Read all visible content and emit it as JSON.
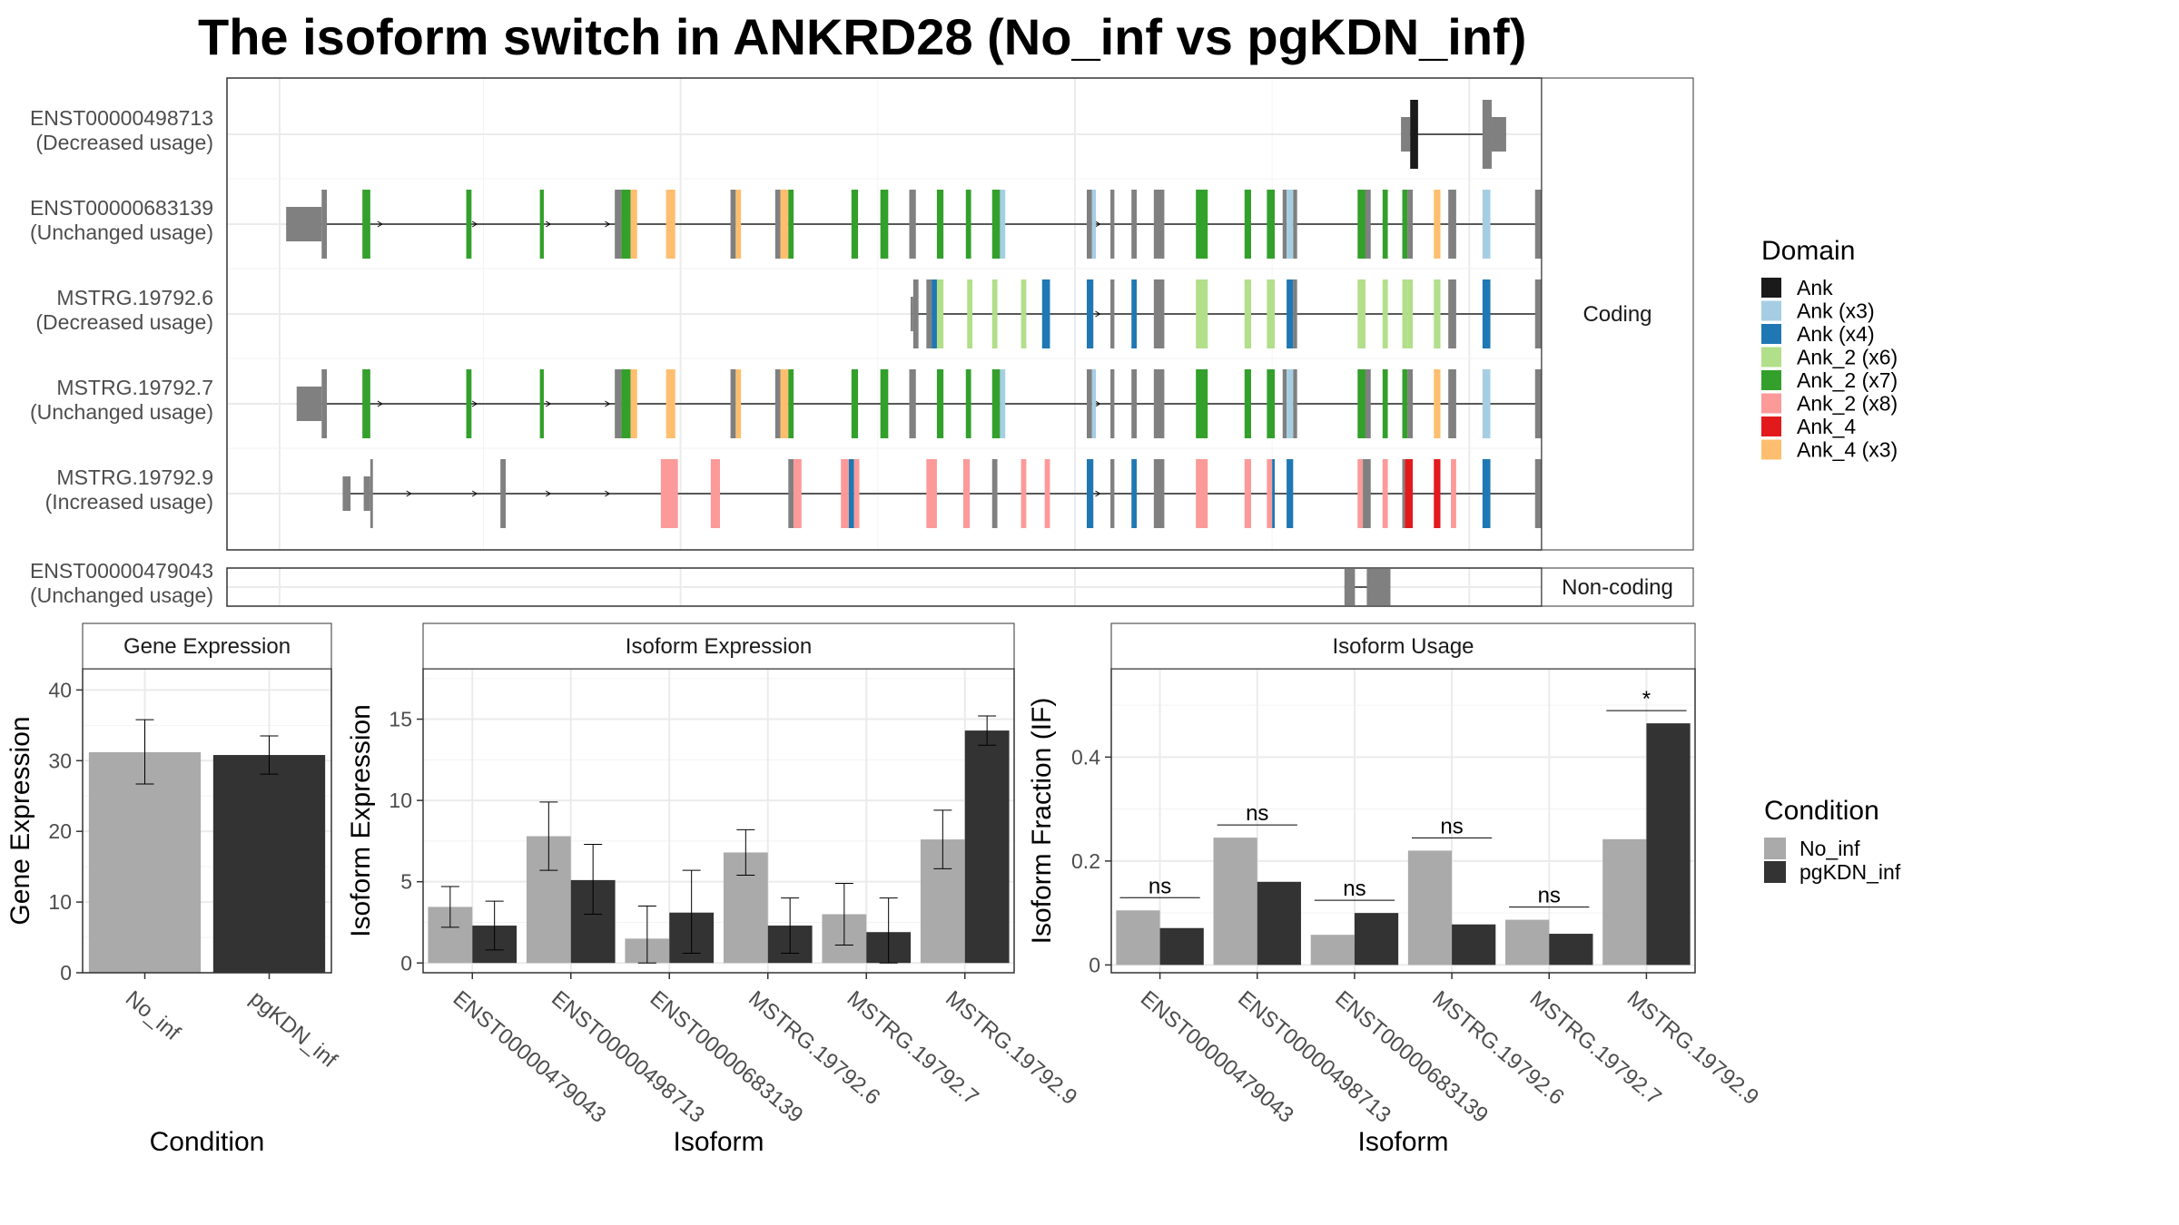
{
  "title": "The isoform switch in ANKRD28 (No_inf vs pgKDN_inf)",
  "colors": {
    "Ank": "#1a1a1a",
    "Ank (x3)": "#a6cee3",
    "Ank (x4)": "#1f78b4",
    "Ank_2 (x6)": "#b2df8a",
    "Ank_2 (x7)": "#33a02c",
    "Ank_2 (x8)": "#fb9a99",
    "Ank_4": "#e31a1c",
    "Ank_4 (x3)": "#fdbf6f",
    "exon": "#808080",
    "No_inf": "#aaaaaa",
    "pgKDN_inf": "#333333"
  },
  "chart_data": [
    {
      "type": "gene-structure",
      "facets": [
        "Coding",
        "Non-coding"
      ],
      "legend_title": "Domain",
      "legend": [
        "Ank",
        "Ank (x3)",
        "Ank (x4)",
        "Ank_2 (x6)",
        "Ank_2 (x7)",
        "Ank_2 (x8)",
        "Ank_4",
        "Ank_4 (x3)"
      ],
      "transcripts": [
        {
          "id": "ENST00000498713",
          "usage": "(Decreased usage)",
          "facet": "Coding",
          "exons": [
            [
              0.893,
              0.9,
              "u"
            ],
            [
              0.9,
              0.906,
              "Ank"
            ],
            [
              0.955,
              0.962,
              "c"
            ],
            [
              0.962,
              0.973,
              "u"
            ]
          ],
          "arrows": []
        },
        {
          "id": "ENST00000683139",
          "usage": "(Unchanged usage)",
          "facet": "Coding",
          "exons": [
            [
              0.045,
              0.072,
              "u"
            ],
            [
              0.072,
              0.076,
              "c"
            ],
            [
              0.103,
              0.109,
              "Ank_2 (x7)"
            ],
            [
              0.182,
              0.186,
              "Ank_2 (x7)"
            ],
            [
              0.238,
              0.241,
              "Ank_2 (x7)"
            ],
            [
              0.295,
              0.3,
              "c"
            ],
            [
              0.3,
              0.307,
              "Ank_2 (x7)"
            ],
            [
              0.307,
              0.312,
              "Ank_4 (x3)"
            ],
            [
              0.334,
              0.341,
              "Ank_4 (x3)"
            ],
            [
              0.383,
              0.387,
              "c"
            ],
            [
              0.387,
              0.391,
              "Ank_4 (x3)"
            ],
            [
              0.417,
              0.421,
              "c"
            ],
            [
              0.421,
              0.427,
              "Ank_4 (x3)"
            ],
            [
              0.427,
              0.431,
              "Ank_2 (x7)"
            ],
            [
              0.475,
              0.48,
              "Ank_2 (x7)"
            ],
            [
              0.497,
              0.503,
              "Ank_2 (x7)"
            ],
            [
              0.519,
              0.524,
              "c"
            ],
            [
              0.54,
              0.545,
              "Ank_2 (x7)"
            ],
            [
              0.562,
              0.566,
              "Ank_2 (x7)"
            ],
            [
              0.582,
              0.588,
              "Ank_2 (x7)"
            ],
            [
              0.588,
              0.592,
              "Ank (x3)"
            ],
            [
              0.654,
              0.658,
              "c"
            ],
            [
              0.658,
              0.661,
              "Ank (x3)"
            ],
            [
              0.672,
              0.675,
              "c"
            ],
            [
              0.688,
              0.692,
              "c"
            ],
            [
              0.705,
              0.713,
              "c"
            ],
            [
              0.737,
              0.746,
              "Ank_2 (x7)"
            ],
            [
              0.774,
              0.779,
              "Ank_2 (x7)"
            ],
            [
              0.791,
              0.797,
              "Ank_2 (x7)"
            ],
            [
              0.803,
              0.806,
              "c"
            ],
            [
              0.806,
              0.811,
              "Ank (x3)"
            ],
            [
              0.811,
              0.814,
              "c"
            ],
            [
              0.86,
              0.866,
              "Ank_2 (x7)"
            ],
            [
              0.866,
              0.87,
              "c"
            ],
            [
              0.879,
              0.883,
              "Ank_2 (x7)"
            ],
            [
              0.894,
              0.898,
              "Ank_2 (x7)"
            ],
            [
              0.898,
              0.902,
              "c"
            ],
            [
              0.918,
              0.923,
              "Ank_4 (x3)"
            ],
            [
              0.929,
              0.935,
              "c"
            ],
            [
              0.955,
              0.961,
              "Ank (x3)"
            ],
            [
              0.995,
              1.012,
              "c"
            ],
            [
              1.012,
              1.057,
              "u"
            ]
          ],
          "arrows": [
            0.118,
            0.19,
            0.246,
            0.291,
            0.664
          ]
        },
        {
          "id": "MSTRG.19792.6",
          "usage": "(Decreased usage)",
          "facet": "Coding",
          "exons": [
            [
              0.52,
              0.522,
              "u"
            ],
            [
              0.522,
              0.526,
              "c"
            ],
            [
              0.532,
              0.536,
              "c"
            ],
            [
              0.536,
              0.541,
              "Ank (x4)"
            ],
            [
              0.54,
              0.545,
              "Ank_2 (x6)"
            ],
            [
              0.563,
              0.567,
              "Ank_2 (x6)"
            ],
            [
              0.582,
              0.586,
              "Ank_2 (x6)"
            ],
            [
              0.604,
              0.608,
              "Ank_2 (x6)"
            ],
            [
              0.62,
              0.626,
              "Ank (x4)"
            ],
            [
              0.654,
              0.659,
              "Ank (x4)"
            ],
            [
              0.672,
              0.675,
              "c"
            ],
            [
              0.688,
              0.692,
              "Ank (x4)"
            ],
            [
              0.705,
              0.713,
              "c"
            ],
            [
              0.737,
              0.746,
              "Ank_2 (x6)"
            ],
            [
              0.774,
              0.779,
              "Ank_2 (x6)"
            ],
            [
              0.791,
              0.797,
              "Ank_2 (x6)"
            ],
            [
              0.806,
              0.811,
              "Ank (x4)"
            ],
            [
              0.811,
              0.814,
              "c"
            ],
            [
              0.86,
              0.866,
              "Ank_2 (x6)"
            ],
            [
              0.879,
              0.883,
              "Ank_2 (x6)"
            ],
            [
              0.894,
              0.898,
              "Ank_2 (x6)"
            ],
            [
              0.898,
              0.902,
              "Ank_2 (x6)"
            ],
            [
              0.918,
              0.923,
              "Ank_2 (x6)"
            ],
            [
              0.929,
              0.935,
              "c"
            ],
            [
              0.955,
              0.961,
              "Ank (x4)"
            ],
            [
              0.995,
              1.057,
              "c"
            ]
          ],
          "arrows": [
            0.664
          ]
        },
        {
          "id": "MSTRG.19792.7",
          "usage": "(Unchanged usage)",
          "facet": "Coding",
          "exons": [
            [
              0.053,
              0.072,
              "u"
            ],
            [
              0.072,
              0.076,
              "c"
            ],
            [
              0.103,
              0.109,
              "Ank_2 (x7)"
            ],
            [
              0.182,
              0.186,
              "Ank_2 (x7)"
            ],
            [
              0.238,
              0.241,
              "Ank_2 (x7)"
            ],
            [
              0.295,
              0.3,
              "c"
            ],
            [
              0.3,
              0.307,
              "Ank_2 (x7)"
            ],
            [
              0.307,
              0.312,
              "Ank_4 (x3)"
            ],
            [
              0.334,
              0.341,
              "Ank_4 (x3)"
            ],
            [
              0.383,
              0.387,
              "c"
            ],
            [
              0.387,
              0.391,
              "Ank_4 (x3)"
            ],
            [
              0.417,
              0.421,
              "c"
            ],
            [
              0.421,
              0.427,
              "Ank_4 (x3)"
            ],
            [
              0.427,
              0.431,
              "Ank_2 (x7)"
            ],
            [
              0.475,
              0.48,
              "Ank_2 (x7)"
            ],
            [
              0.497,
              0.503,
              "Ank_2 (x7)"
            ],
            [
              0.519,
              0.524,
              "c"
            ],
            [
              0.54,
              0.545,
              "Ank_2 (x7)"
            ],
            [
              0.562,
              0.566,
              "Ank_2 (x7)"
            ],
            [
              0.582,
              0.588,
              "Ank_2 (x7)"
            ],
            [
              0.588,
              0.592,
              "Ank (x3)"
            ],
            [
              0.654,
              0.658,
              "c"
            ],
            [
              0.658,
              0.661,
              "Ank (x3)"
            ],
            [
              0.672,
              0.675,
              "c"
            ],
            [
              0.688,
              0.692,
              "c"
            ],
            [
              0.705,
              0.713,
              "c"
            ],
            [
              0.737,
              0.746,
              "Ank_2 (x7)"
            ],
            [
              0.774,
              0.779,
              "Ank_2 (x7)"
            ],
            [
              0.791,
              0.797,
              "Ank_2 (x7)"
            ],
            [
              0.803,
              0.806,
              "c"
            ],
            [
              0.806,
              0.811,
              "Ank (x3)"
            ],
            [
              0.811,
              0.814,
              "c"
            ],
            [
              0.86,
              0.866,
              "Ank_2 (x7)"
            ],
            [
              0.866,
              0.87,
              "c"
            ],
            [
              0.879,
              0.883,
              "Ank_2 (x7)"
            ],
            [
              0.894,
              0.898,
              "Ank_2 (x7)"
            ],
            [
              0.898,
              0.902,
              "c"
            ],
            [
              0.918,
              0.923,
              "Ank_4 (x3)"
            ],
            [
              0.929,
              0.935,
              "c"
            ],
            [
              0.955,
              0.961,
              "Ank (x3)"
            ],
            [
              0.995,
              1.012,
              "c"
            ],
            [
              1.012,
              1.057,
              "u"
            ]
          ],
          "arrows": [
            0.118,
            0.19,
            0.246,
            0.291,
            0.664
          ]
        },
        {
          "id": "MSTRG.19792.9",
          "usage": "(Increased usage)",
          "facet": "Coding",
          "exons": [
            [
              0.088,
              0.094,
              "u"
            ],
            [
              0.104,
              0.109,
              "u"
            ],
            [
              0.109,
              0.111,
              "c"
            ],
            [
              0.208,
              0.212,
              "c"
            ],
            [
              0.33,
              0.343,
              "Ank_2 (x8)"
            ],
            [
              0.368,
              0.375,
              "Ank_2 (x8)"
            ],
            [
              0.427,
              0.431,
              "c"
            ],
            [
              0.431,
              0.437,
              "Ank_2 (x8)"
            ],
            [
              0.467,
              0.473,
              "Ank_2 (x8)"
            ],
            [
              0.473,
              0.477,
              "Ank (x4)"
            ],
            [
              0.477,
              0.481,
              "Ank_2 (x8)"
            ],
            [
              0.532,
              0.54,
              "Ank_2 (x8)"
            ],
            [
              0.56,
              0.565,
              "Ank_2 (x8)"
            ],
            [
              0.582,
              0.586,
              "c"
            ],
            [
              0.604,
              0.608,
              "Ank_2 (x8)"
            ],
            [
              0.622,
              0.626,
              "Ank_2 (x8)"
            ],
            [
              0.654,
              0.659,
              "Ank (x4)"
            ],
            [
              0.672,
              0.675,
              "c"
            ],
            [
              0.688,
              0.692,
              "Ank (x4)"
            ],
            [
              0.705,
              0.713,
              "c"
            ],
            [
              0.737,
              0.746,
              "Ank_2 (x8)"
            ],
            [
              0.774,
              0.779,
              "Ank_2 (x8)"
            ],
            [
              0.791,
              0.795,
              "Ank_2 (x8)"
            ],
            [
              0.795,
              0.797,
              "Ank (x4)"
            ],
            [
              0.806,
              0.811,
              "Ank (x4)"
            ],
            [
              0.86,
              0.864,
              "Ank_2 (x8)"
            ],
            [
              0.864,
              0.87,
              "c"
            ],
            [
              0.879,
              0.883,
              "Ank_2 (x8)"
            ],
            [
              0.894,
              0.896,
              "c"
            ],
            [
              0.896,
              0.902,
              "Ank_4"
            ],
            [
              0.918,
              0.923,
              "Ank_4"
            ],
            [
              0.931,
              0.935,
              "Ank_2 (x8)"
            ],
            [
              0.955,
              0.961,
              "Ank (x4)"
            ],
            [
              0.995,
              1.04,
              "c"
            ]
          ],
          "arrows": [
            0.14,
            0.19,
            0.246,
            0.291,
            0.664
          ]
        },
        {
          "id": "ENST00000479043",
          "usage": "(Unchanged usage)",
          "facet": "Non-coding",
          "exons": [
            [
              0.85,
              0.858,
              "c"
            ],
            [
              0.867,
              0.885,
              "c"
            ]
          ],
          "arrows": []
        }
      ]
    },
    {
      "type": "bar",
      "title": "Gene Expression",
      "xlabel": "Condition",
      "ylabel": "Gene Expression",
      "categories": [
        "No_inf",
        "pgKDN_inf"
      ],
      "values": [
        31.2,
        30.8
      ],
      "error": [
        [
          26.7,
          35.8
        ],
        [
          28.1,
          33.5
        ]
      ],
      "ylim": [
        0,
        43
      ],
      "yticks": [
        0,
        10,
        20,
        30,
        40
      ]
    },
    {
      "type": "bar",
      "title": "Isoform Expression",
      "xlabel": "Isoform",
      "ylabel": "Isoform Expression",
      "categories": [
        "ENST00000479043",
        "ENST00000498713",
        "ENST00000683139",
        "MSTRG.19792.6",
        "MSTRG.19792.7",
        "MSTRG.19792.9"
      ],
      "series": [
        {
          "name": "No_inf",
          "values": [
            3.45,
            7.8,
            1.5,
            6.8,
            3.0,
            7.6
          ],
          "error": [
            [
              2.2,
              4.7
            ],
            [
              5.7,
              9.9
            ],
            [
              0.0,
              3.5
            ],
            [
              5.4,
              8.2
            ],
            [
              1.1,
              4.9
            ],
            [
              5.8,
              9.4
            ]
          ]
        },
        {
          "name": "pgKDN_inf",
          "values": [
            2.3,
            5.1,
            3.1,
            2.3,
            1.9,
            14.3
          ],
          "error": [
            [
              0.8,
              3.8
            ],
            [
              3.0,
              7.3
            ],
            [
              0.6,
              5.7
            ],
            [
              0.6,
              4.0
            ],
            [
              0.0,
              4.0
            ],
            [
              13.4,
              15.2
            ]
          ]
        }
      ],
      "ylim": [
        -0.6,
        18.1
      ],
      "yticks": [
        0,
        5,
        10,
        15
      ]
    },
    {
      "type": "bar",
      "title": "Isoform Usage",
      "xlabel": "Isoform",
      "ylabel": "Isoform Fraction (IF)",
      "categories": [
        "ENST00000479043",
        "ENST00000498713",
        "ENST00000683139",
        "MSTRG.19792.6",
        "MSTRG.19792.7",
        "MSTRG.19792.9"
      ],
      "series": [
        {
          "name": "No_inf",
          "values": [
            0.105,
            0.245,
            0.058,
            0.22,
            0.087,
            0.242
          ]
        },
        {
          "name": "pgKDN_inf",
          "values": [
            0.071,
            0.16,
            0.1,
            0.078,
            0.06,
            0.465
          ]
        }
      ],
      "significance": [
        "ns",
        "ns",
        "ns",
        "ns",
        "ns",
        "*"
      ],
      "ylim": [
        -0.015,
        0.57
      ],
      "yticks": [
        0.0,
        0.2,
        0.4
      ]
    }
  ],
  "condition_legend": {
    "title": "Condition",
    "items": [
      "No_inf",
      "pgKDN_inf"
    ]
  }
}
